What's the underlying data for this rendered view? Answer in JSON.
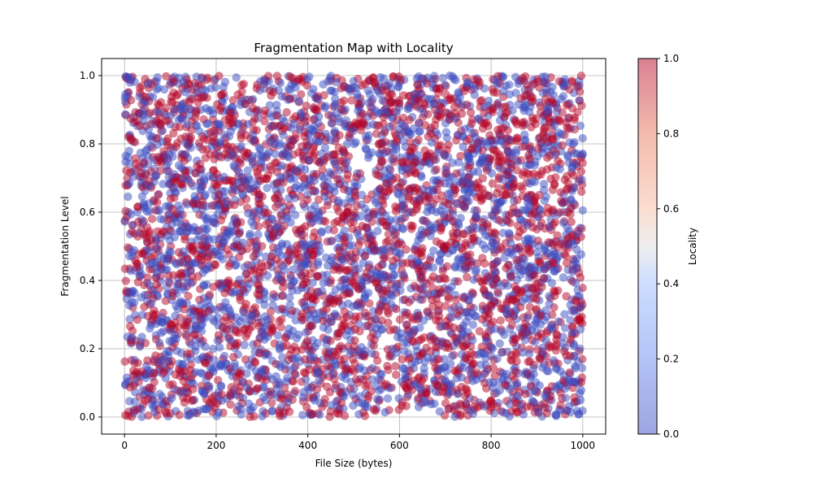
{
  "chart_data": {
    "type": "scatter",
    "title": "Fragmentation Map with Locality",
    "xlabel": "File Size (bytes)",
    "ylabel": "Fragmentation Level",
    "xlim": [
      -50,
      1050
    ],
    "ylim": [
      -0.05,
      1.05
    ],
    "xticks": [
      0,
      200,
      400,
      600,
      800,
      1000
    ],
    "yticks": [
      0.0,
      0.2,
      0.4,
      0.6,
      0.8,
      1.0
    ],
    "x_tick_labels": [
      "0",
      "200",
      "400",
      "600",
      "800",
      "1000"
    ],
    "y_tick_labels": [
      "0.0",
      "0.2",
      "0.4",
      "0.6",
      "0.8",
      "1.0"
    ],
    "grid": true,
    "colormap": "coolwarm",
    "colorbar": {
      "label": "Locality",
      "range": [
        0.0,
        1.0
      ],
      "ticks": [
        0.0,
        0.2,
        0.4,
        0.6,
        0.8,
        1.0
      ],
      "tick_labels": [
        "0.0",
        "0.2",
        "0.4",
        "0.6",
        "0.8",
        "1.0"
      ]
    },
    "point_alpha": 0.5,
    "point_count_approx": 5000,
    "distribution": {
      "x": "uniform 0 to 1000",
      "y": "uniform 0 to 1",
      "locality": "binary values 0 or 1"
    },
    "sample_points": [
      {
        "x": 12,
        "y": 0.98,
        "locality": 0
      },
      {
        "x": 45,
        "y": 0.99,
        "locality": 1
      },
      {
        "x": 150,
        "y": 0.5,
        "locality": 1
      },
      {
        "x": 300,
        "y": 0.25,
        "locality": 0
      },
      {
        "x": 420,
        "y": 0.75,
        "locality": 1
      },
      {
        "x": 530,
        "y": 0.4,
        "locality": 0
      },
      {
        "x": 620,
        "y": 0.1,
        "locality": 1
      },
      {
        "x": 780,
        "y": 0.8,
        "locality": 0
      },
      {
        "x": 900,
        "y": 0.55,
        "locality": 1
      },
      {
        "x": 995,
        "y": 0.05,
        "locality": 0
      }
    ]
  }
}
